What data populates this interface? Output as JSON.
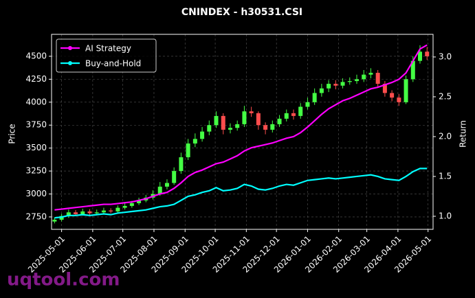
{
  "chart_data": {
    "type": "candlestick",
    "title": "CNINDEX - h30531.CSI",
    "y_label": "Price",
    "y2_label": "Return",
    "watermark": "uqtool.com",
    "legend": "upper left",
    "grid": true,
    "up_color": "#44ff44",
    "down_color": "#ff4d4d",
    "x": [
      "2025-04-24",
      "2025-05-01",
      "2025-05-08",
      "2025-05-15",
      "2025-05-22",
      "2025-05-29",
      "2025-06-05",
      "2025-06-12",
      "2025-06-19",
      "2025-06-26",
      "2025-07-03",
      "2025-07-10",
      "2025-07-17",
      "2025-07-24",
      "2025-07-31",
      "2025-08-07",
      "2025-08-14",
      "2025-08-21",
      "2025-08-28",
      "2025-09-04",
      "2025-09-11",
      "2025-09-18",
      "2025-09-25",
      "2025-10-02",
      "2025-10-09",
      "2025-10-16",
      "2025-10-23",
      "2025-10-30",
      "2025-11-06",
      "2025-11-13",
      "2025-11-20",
      "2025-11-27",
      "2025-12-04",
      "2025-12-11",
      "2025-12-18",
      "2025-12-25",
      "2026-01-01",
      "2026-01-08",
      "2026-01-15",
      "2026-01-22",
      "2026-01-29",
      "2026-02-05",
      "2026-02-12",
      "2026-02-19",
      "2026-02-26",
      "2026-03-05",
      "2026-03-12",
      "2026-03-19",
      "2026-03-26",
      "2026-04-02",
      "2026-04-09",
      "2026-04-16",
      "2026-04-23",
      "2026-04-30"
    ],
    "open": [
      2700,
      2720,
      2760,
      2800,
      2780,
      2810,
      2790,
      2800,
      2820,
      2810,
      2850,
      2870,
      2900,
      2930,
      2960,
      3000,
      3080,
      3120,
      3250,
      3400,
      3550,
      3600,
      3680,
      3750,
      3850,
      3700,
      3720,
      3760,
      3900,
      3880,
      3750,
      3700,
      3760,
      3820,
      3880,
      3850,
      3950,
      4000,
      4100,
      4150,
      4200,
      4180,
      4220,
      4230,
      4250,
      4300,
      4320,
      4200,
      4100,
      4050,
      4000,
      4250,
      4450,
      4550
    ],
    "high": [
      2745,
      2785,
      2830,
      2825,
      2840,
      2835,
      2830,
      2850,
      2845,
      2875,
      2900,
      2925,
      2960,
      2990,
      3040,
      3130,
      3160,
      3290,
      3450,
      3600,
      3660,
      3730,
      3800,
      3900,
      3880,
      3770,
      3800,
      3960,
      3950,
      3900,
      3780,
      3800,
      3860,
      3920,
      3920,
      3990,
      4050,
      4150,
      4200,
      4240,
      4240,
      4260,
      4270,
      4300,
      4350,
      4370,
      4350,
      4230,
      4130,
      4090,
      4290,
      4500,
      4620,
      4600
    ],
    "low": [
      2680,
      2700,
      2740,
      2760,
      2765,
      2770,
      2770,
      2780,
      2790,
      2795,
      2830,
      2850,
      2880,
      2910,
      2940,
      2980,
      3050,
      3100,
      3220,
      3370,
      3510,
      3570,
      3640,
      3720,
      3650,
      3660,
      3690,
      3730,
      3840,
      3700,
      3650,
      3670,
      3730,
      3790,
      3810,
      3820,
      3920,
      3970,
      4060,
      4110,
      4140,
      4150,
      4190,
      4200,
      4220,
      4260,
      4160,
      4060,
      4010,
      3960,
      3980,
      4220,
      4420,
      4460
    ],
    "close": [
      2720,
      2760,
      2800,
      2780,
      2810,
      2790,
      2800,
      2820,
      2810,
      2850,
      2870,
      2900,
      2930,
      2960,
      3000,
      3080,
      3120,
      3250,
      3400,
      3550,
      3600,
      3680,
      3750,
      3850,
      3700,
      3720,
      3760,
      3900,
      3880,
      3750,
      3700,
      3760,
      3820,
      3880,
      3850,
      3950,
      4000,
      4100,
      4150,
      4200,
      4180,
      4220,
      4230,
      4250,
      4300,
      4320,
      4200,
      4100,
      4050,
      4000,
      4250,
      4450,
      4550,
      4500
    ],
    "series": [
      {
        "name": "AI Strategy",
        "color": "#ff00ff",
        "axis": "y2",
        "values": [
          1.08,
          1.09,
          1.1,
          1.11,
          1.12,
          1.13,
          1.14,
          1.15,
          1.15,
          1.16,
          1.17,
          1.18,
          1.2,
          1.22,
          1.25,
          1.28,
          1.3,
          1.35,
          1.42,
          1.5,
          1.55,
          1.58,
          1.62,
          1.66,
          1.68,
          1.72,
          1.76,
          1.82,
          1.86,
          1.88,
          1.9,
          1.92,
          1.95,
          1.98,
          2.0,
          2.05,
          2.12,
          2.2,
          2.28,
          2.35,
          2.4,
          2.45,
          2.48,
          2.52,
          2.56,
          2.6,
          2.62,
          2.65,
          2.68,
          2.72,
          2.8,
          2.95,
          3.1,
          3.15
        ]
      },
      {
        "name": "Buy-and-Hold",
        "color": "#00ffff",
        "axis": "y2",
        "values": [
          0.98,
          0.99,
          1.01,
          1.01,
          1.02,
          1.01,
          1.02,
          1.03,
          1.02,
          1.04,
          1.05,
          1.06,
          1.07,
          1.08,
          1.1,
          1.12,
          1.13,
          1.15,
          1.2,
          1.25,
          1.27,
          1.3,
          1.32,
          1.36,
          1.32,
          1.33,
          1.35,
          1.4,
          1.38,
          1.34,
          1.33,
          1.35,
          1.38,
          1.4,
          1.39,
          1.42,
          1.45,
          1.46,
          1.47,
          1.48,
          1.47,
          1.48,
          1.49,
          1.5,
          1.51,
          1.52,
          1.5,
          1.47,
          1.46,
          1.45,
          1.5,
          1.56,
          1.6,
          1.6
        ]
      }
    ],
    "xlim": [
      "2025-04-21",
      "2026-05-06"
    ],
    "xticks": [
      "2025-05-01",
      "2025-06-01",
      "2025-07-01",
      "2025-08-01",
      "2025-09-01",
      "2025-10-01",
      "2025-11-01",
      "2025-12-01",
      "2026-01-01",
      "2026-02-01",
      "2026-03-01",
      "2026-04-01",
      "2026-05-01"
    ],
    "ylim": [
      2615,
      4739
    ],
    "yticks": [
      2750,
      3000,
      3250,
      3500,
      3750,
      4000,
      4250,
      4500
    ],
    "y2lim": [
      0.836,
      3.284
    ],
    "y2ticks": [
      {
        "value": 1,
        "label": "1.0"
      },
      1.5,
      {
        "value": 2,
        "label": "2.0"
      },
      2.5,
      {
        "value": 3,
        "label": "3.0"
      }
    ]
  }
}
